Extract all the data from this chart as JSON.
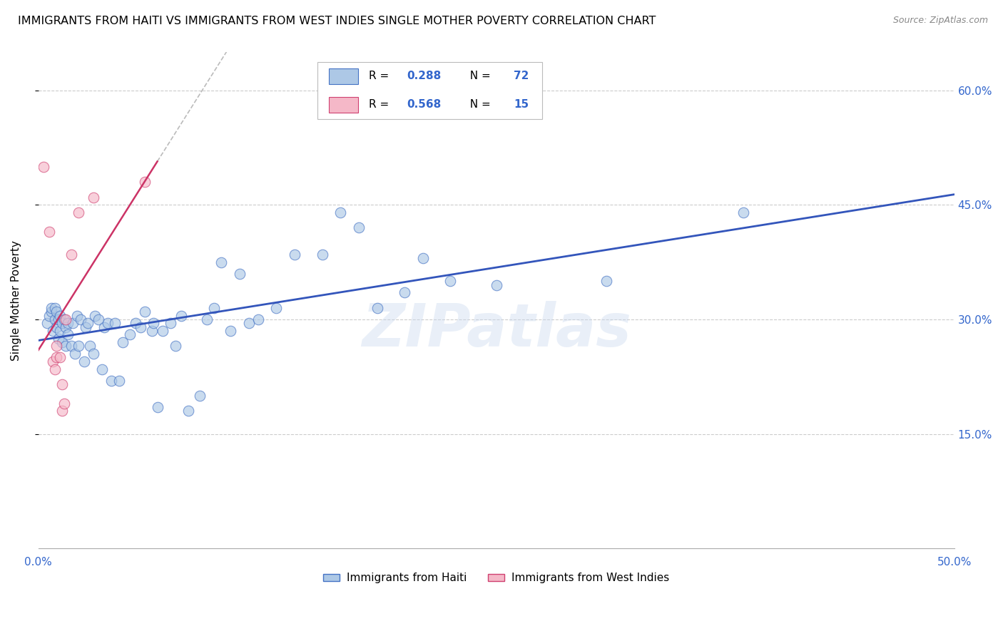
{
  "title": "IMMIGRANTS FROM HAITI VS IMMIGRANTS FROM WEST INDIES SINGLE MOTHER POVERTY CORRELATION CHART",
  "source": "Source: ZipAtlas.com",
  "ylabel": "Single Mother Poverty",
  "xlim": [
    0,
    0.5
  ],
  "ylim": [
    0.0,
    0.65
  ],
  "x_ticks_show": [
    0.0,
    0.5
  ],
  "y_ticks": [
    0.15,
    0.3,
    0.45,
    0.6
  ],
  "legend_labels": [
    "Immigrants from Haiti",
    "Immigrants from West Indies"
  ],
  "R_haiti": 0.288,
  "N_haiti": 72,
  "R_westindies": 0.568,
  "N_westindies": 15,
  "haiti_face_color": "#adc8e6",
  "haiti_edge_color": "#4472c4",
  "wi_face_color": "#f5b8c8",
  "wi_edge_color": "#d04070",
  "haiti_line_color": "#3355bb",
  "wi_line_color": "#cc3366",
  "watermark": "ZIPatlas",
  "haiti_x": [
    0.005,
    0.006,
    0.007,
    0.007,
    0.008,
    0.009,
    0.009,
    0.01,
    0.01,
    0.011,
    0.011,
    0.012,
    0.012,
    0.013,
    0.013,
    0.014,
    0.015,
    0.015,
    0.016,
    0.016,
    0.018,
    0.019,
    0.02,
    0.021,
    0.022,
    0.023,
    0.025,
    0.026,
    0.027,
    0.028,
    0.03,
    0.031,
    0.033,
    0.035,
    0.036,
    0.038,
    0.04,
    0.042,
    0.044,
    0.046,
    0.05,
    0.053,
    0.056,
    0.058,
    0.062,
    0.063,
    0.065,
    0.068,
    0.072,
    0.075,
    0.078,
    0.082,
    0.088,
    0.092,
    0.096,
    0.1,
    0.105,
    0.11,
    0.115,
    0.12,
    0.13,
    0.14,
    0.155,
    0.165,
    0.175,
    0.185,
    0.2,
    0.21,
    0.225,
    0.25,
    0.31,
    0.385
  ],
  "haiti_y": [
    0.295,
    0.305,
    0.31,
    0.315,
    0.285,
    0.3,
    0.315,
    0.29,
    0.31,
    0.275,
    0.3,
    0.285,
    0.305,
    0.27,
    0.295,
    0.3,
    0.265,
    0.29,
    0.28,
    0.295,
    0.265,
    0.295,
    0.255,
    0.305,
    0.265,
    0.3,
    0.245,
    0.29,
    0.295,
    0.265,
    0.255,
    0.305,
    0.3,
    0.235,
    0.29,
    0.295,
    0.22,
    0.295,
    0.22,
    0.27,
    0.28,
    0.295,
    0.29,
    0.31,
    0.285,
    0.295,
    0.185,
    0.285,
    0.295,
    0.265,
    0.305,
    0.18,
    0.2,
    0.3,
    0.315,
    0.375,
    0.285,
    0.36,
    0.295,
    0.3,
    0.315,
    0.385,
    0.385,
    0.44,
    0.42,
    0.315,
    0.335,
    0.38,
    0.35,
    0.345,
    0.35,
    0.44
  ],
  "wi_x": [
    0.003,
    0.006,
    0.008,
    0.009,
    0.01,
    0.01,
    0.012,
    0.013,
    0.013,
    0.014,
    0.015,
    0.018,
    0.022,
    0.03,
    0.058
  ],
  "wi_y": [
    0.5,
    0.415,
    0.245,
    0.235,
    0.25,
    0.265,
    0.25,
    0.215,
    0.18,
    0.19,
    0.3,
    0.385,
    0.44,
    0.46,
    0.48
  ]
}
